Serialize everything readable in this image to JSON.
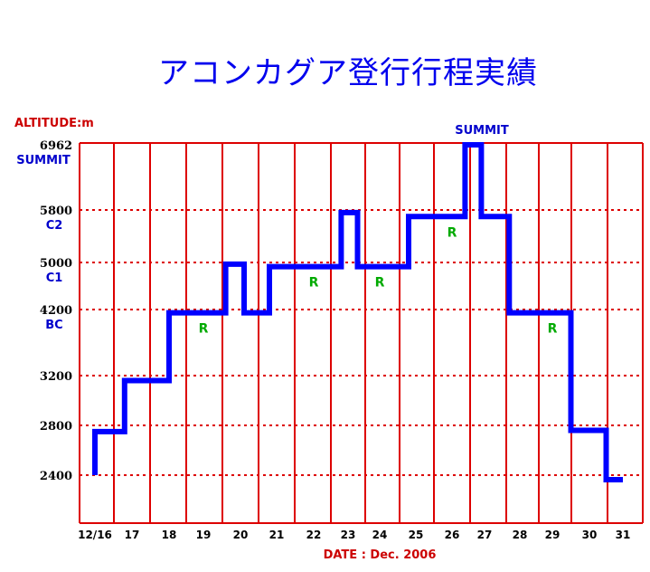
{
  "chart_data": {
    "type": "line",
    "title": "アコンカグア登行行程実績",
    "ylabel": "ALTITUDE:m",
    "xlabel": "DATE : Dec. 2006",
    "summit_label": "SUMMIT",
    "x_ticks": [
      "12/16",
      "17",
      "18",
      "19",
      "20",
      "21",
      "22",
      "23",
      "24",
      "25",
      "26",
      "27",
      "28",
      "29",
      "30",
      "31"
    ],
    "y_ticks": [
      {
        "value": 2400,
        "label": "2400",
        "camp": ""
      },
      {
        "value": 2800,
        "label": "2800",
        "camp": ""
      },
      {
        "value": 3200,
        "label": "3200",
        "camp": ""
      },
      {
        "value": 4200,
        "label": "4200",
        "camp": "BC"
      },
      {
        "value": 5000,
        "label": "5000",
        "camp": "C1"
      },
      {
        "value": 5800,
        "label": "5800",
        "camp": "C2"
      },
      {
        "value": 6962,
        "label": "6962",
        "camp": "SUMMIT"
      }
    ],
    "series": [
      {
        "color": "#0000ff",
        "points": [
          [
            16.0,
            2400
          ],
          [
            16.0,
            2750
          ],
          [
            16.8,
            2750
          ],
          [
            16.8,
            3160
          ],
          [
            18.0,
            3160
          ],
          [
            18.0,
            4150
          ],
          [
            19.6,
            4150
          ],
          [
            19.6,
            4970
          ],
          [
            20.1,
            4970
          ],
          [
            20.1,
            4150
          ],
          [
            20.8,
            4150
          ],
          [
            20.8,
            4930
          ],
          [
            22.8,
            4930
          ],
          [
            22.8,
            5760
          ],
          [
            23.3,
            5760
          ],
          [
            23.3,
            4930
          ],
          [
            24.8,
            4930
          ],
          [
            24.8,
            5700
          ],
          [
            26.4,
            5700
          ],
          [
            26.4,
            6962
          ],
          [
            26.9,
            6962
          ],
          [
            26.9,
            5700
          ],
          [
            27.7,
            5700
          ],
          [
            27.7,
            4150
          ],
          [
            29.5,
            4150
          ],
          [
            29.5,
            2760
          ],
          [
            30.5,
            2760
          ],
          [
            30.5,
            2350
          ],
          [
            31.0,
            2350
          ]
        ]
      }
    ],
    "rest_markers": [
      {
        "day": 19.0,
        "altitude": 4150,
        "label": "R"
      },
      {
        "day": 22.0,
        "altitude": 4930,
        "label": "R"
      },
      {
        "day": 24.0,
        "altitude": 4930,
        "label": "R"
      },
      {
        "day": 26.0,
        "altitude": 5700,
        "label": "R"
      },
      {
        "day": 29.0,
        "altitude": 4150,
        "label": "R"
      }
    ],
    "grid": true,
    "colors": {
      "grid": "#dd0000",
      "line": "#0000ff",
      "rest": "#00aa00",
      "title": "#0000ee",
      "axis_label": "#cc0000",
      "camp_label": "#0000cc"
    }
  }
}
